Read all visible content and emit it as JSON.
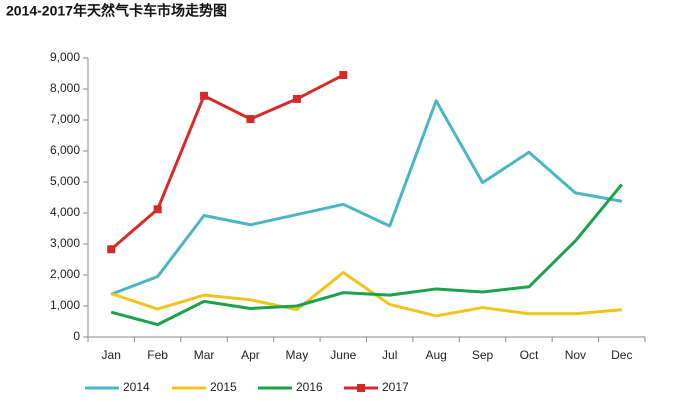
{
  "chart_data": {
    "type": "line",
    "title": "2014-2017年天然气卡车市场走势图",
    "categories": [
      "Jan",
      "Feb",
      "Mar",
      "Apr",
      "May",
      "June",
      "Jul",
      "Aug",
      "Sep",
      "Oct",
      "Nov",
      "Dec"
    ],
    "series": [
      {
        "name": "2014",
        "color": "#4bb5c4",
        "values": [
          1380,
          1950,
          3920,
          3620,
          3950,
          4280,
          3580,
          7620,
          4980,
          5960,
          4650,
          4380
        ]
      },
      {
        "name": "2015",
        "color": "#f0c419",
        "values": [
          1400,
          900,
          1350,
          1200,
          880,
          2080,
          1050,
          680,
          950,
          750,
          750,
          880
        ]
      },
      {
        "name": "2016",
        "color": "#1aa34a",
        "values": [
          800,
          400,
          1150,
          920,
          1000,
          1430,
          1350,
          1550,
          1450,
          1620,
          3100,
          4920
        ]
      },
      {
        "name": "2017",
        "color": "#d62a2a",
        "marker": "square",
        "values": [
          2830,
          4120,
          7780,
          7030,
          7680,
          8450,
          null,
          null,
          null,
          null,
          null,
          null
        ]
      }
    ],
    "ylim": [
      0,
      9000
    ],
    "yticks": [
      0,
      {
        "value": 1000,
        "label": "1,000"
      },
      {
        "value": 2000,
        "label": "2,000"
      },
      {
        "value": 3000,
        "label": "3,000"
      },
      {
        "value": 4000,
        "label": "4,000"
      },
      {
        "value": 5000,
        "label": "5,000"
      },
      {
        "value": 6000,
        "label": "6,000"
      },
      {
        "value": 7000,
        "label": "7,000"
      },
      {
        "value": 8000,
        "label": "8,000"
      },
      {
        "value": 9000,
        "label": "9,000"
      }
    ],
    "grid": false,
    "legend": "bottom"
  }
}
